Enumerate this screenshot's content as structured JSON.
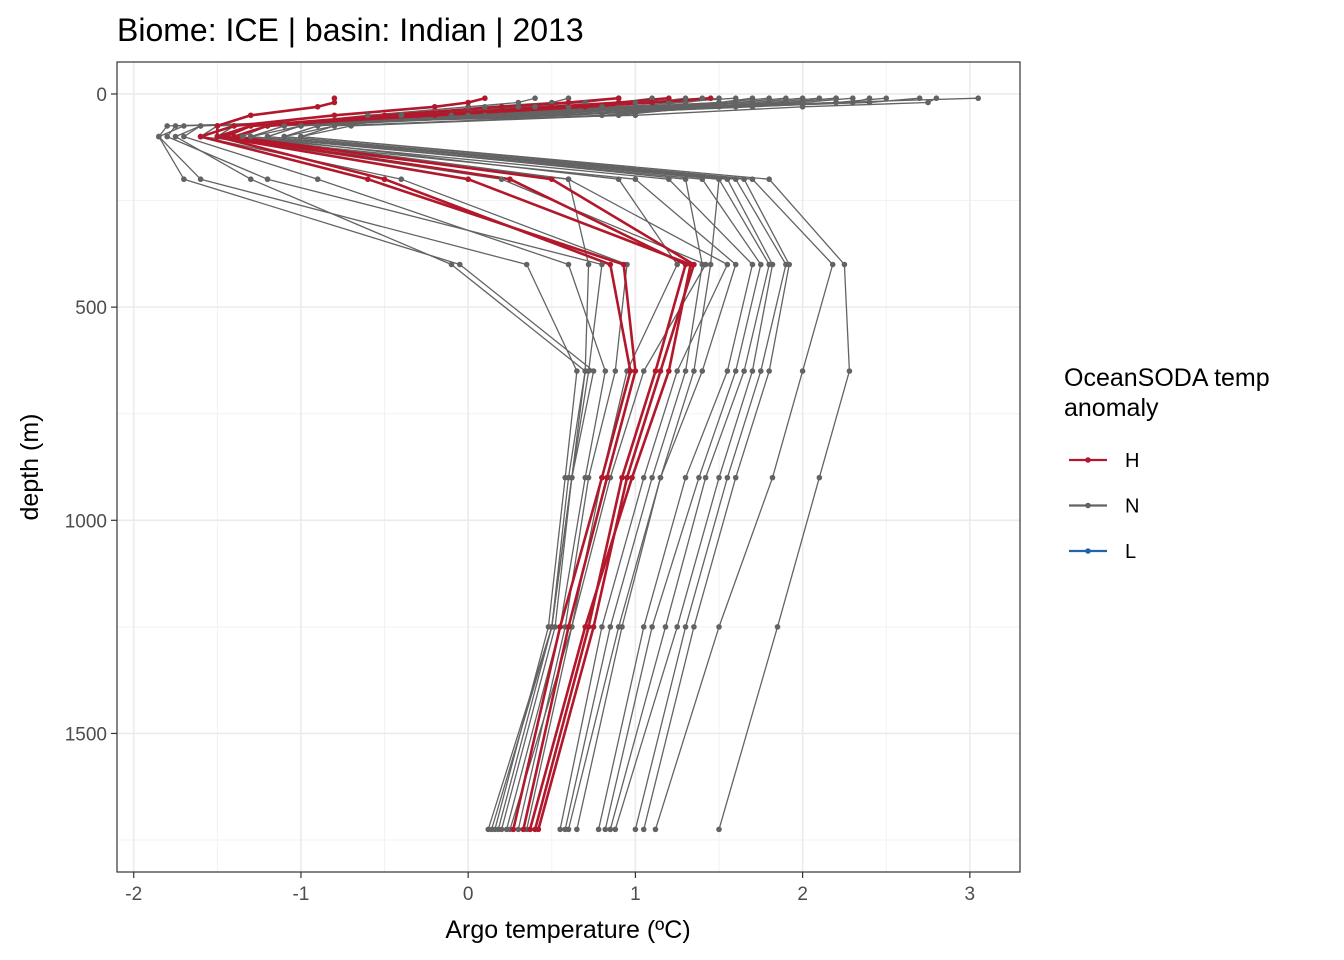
{
  "chart_data": {
    "type": "line",
    "title": "Biome: ICE | basin: Indian  |  2013",
    "xlabel": "Argo temperature (ºC)",
    "ylabel": "depth (m)",
    "xlim": [
      -2.1,
      3.3
    ],
    "ylim": [
      1825,
      -75
    ],
    "y_reversed": true,
    "x_ticks": [
      -2,
      -1,
      0,
      1,
      2,
      3
    ],
    "x_tick_labels": [
      "-2",
      "-1",
      "0",
      "1",
      "2",
      "3"
    ],
    "y_ticks": [
      0,
      500,
      1000,
      1500
    ],
    "y_tick_labels": [
      "0",
      "500",
      "1000",
      "1500"
    ],
    "grid": true,
    "legend": {
      "title_lines": [
        "OceanSODA temp",
        "anomaly"
      ],
      "placement": "right",
      "entries": [
        {
          "label": "H",
          "color": "#b2182b"
        },
        {
          "label": "N",
          "color": "#636363"
        },
        {
          "label": "L",
          "color": "#2166ac"
        }
      ]
    },
    "depth_levels": [
      10,
      20,
      30,
      50,
      75,
      100,
      200,
      400,
      650,
      900,
      1250,
      1725
    ],
    "series": [
      {
        "category": "H",
        "color": "#b2182b",
        "values": [
          -0.8,
          -0.8,
          -0.9,
          -1.3,
          -1.5,
          -1.5,
          -0.5,
          0.85,
          0.97,
          0.8,
          0.55,
          0.27
        ]
      },
      {
        "category": "H",
        "color": "#b2182b",
        "values": [
          0.1,
          0.0,
          -0.2,
          -0.8,
          -1.4,
          -1.6,
          -0.6,
          0.93,
          1.0,
          0.83,
          0.6,
          0.33
        ]
      },
      {
        "category": "H",
        "color": "#b2182b",
        "values": [
          0.9,
          0.6,
          0.2,
          -0.5,
          -1.3,
          -1.5,
          0.0,
          1.33,
          1.2,
          0.98,
          0.7,
          0.37
        ]
      },
      {
        "category": "H",
        "color": "#b2182b",
        "values": [
          1.2,
          0.9,
          0.5,
          -0.3,
          -1.2,
          -1.4,
          0.5,
          1.35,
          1.15,
          0.95,
          0.75,
          0.42
        ]
      },
      {
        "category": "H",
        "color": "#b2182b",
        "values": [
          1.45,
          1.1,
          0.7,
          -0.2,
          -1.3,
          -1.45,
          0.25,
          1.3,
          1.12,
          0.92,
          0.72,
          0.4
        ]
      },
      {
        "category": "N",
        "color": "#636363",
        "values": [
          3.05,
          2.2,
          1.5,
          0.5,
          -1.6,
          -1.75,
          -1.3,
          -0.1,
          0.7,
          0.6,
          0.5,
          0.12
        ]
      },
      {
        "category": "N",
        "color": "#636363",
        "values": [
          2.8,
          2.75,
          2.0,
          1.0,
          -1.8,
          -1.85,
          -1.7,
          -0.05,
          0.75,
          0.62,
          0.5,
          0.14
        ]
      },
      {
        "category": "N",
        "color": "#636363",
        "values": [
          2.4,
          2.3,
          1.7,
          0.5,
          -1.7,
          -1.85,
          -1.6,
          0.35,
          0.65,
          0.58,
          0.48,
          0.16
        ]
      },
      {
        "category": "N",
        "color": "#636363",
        "values": [
          2.2,
          1.9,
          1.3,
          0.3,
          -1.75,
          -1.8,
          -1.2,
          0.8,
          0.72,
          0.62,
          0.52,
          0.2
        ]
      },
      {
        "category": "N",
        "color": "#636363",
        "values": [
          1.8,
          1.5,
          1.0,
          0.0,
          -1.6,
          -1.7,
          -0.9,
          0.6,
          0.82,
          0.7,
          0.55,
          0.23
        ]
      },
      {
        "category": "N",
        "color": "#636363",
        "values": [
          1.6,
          1.2,
          0.6,
          -0.2,
          -1.5,
          -1.6,
          -0.4,
          0.95,
          0.88,
          0.72,
          0.58,
          0.3
        ]
      },
      {
        "category": "N",
        "color": "#636363",
        "values": [
          1.4,
          1.0,
          0.4,
          -0.4,
          -1.4,
          -1.5,
          0.2,
          1.42,
          1.05,
          0.85,
          0.62,
          0.35
        ]
      },
      {
        "category": "N",
        "color": "#636363",
        "values": [
          2.5,
          2.2,
          1.4,
          0.2,
          -1.5,
          -1.6,
          0.6,
          1.55,
          1.25,
          1.05,
          0.8,
          0.55
        ]
      },
      {
        "category": "N",
        "color": "#636363",
        "values": [
          2.7,
          2.4,
          1.6,
          0.6,
          -1.4,
          -1.5,
          1.0,
          1.6,
          1.4,
          1.15,
          0.9,
          0.6
        ]
      },
      {
        "category": "N",
        "color": "#636363",
        "values": [
          2.3,
          2.0,
          1.4,
          0.5,
          -1.2,
          -1.4,
          1.2,
          1.7,
          1.55,
          1.3,
          1.05,
          0.78
        ]
      },
      {
        "category": "N",
        "color": "#636363",
        "values": [
          1.9,
          1.6,
          1.1,
          0.3,
          -1.1,
          -1.3,
          1.4,
          1.75,
          1.6,
          1.38,
          1.1,
          0.82
        ]
      },
      {
        "category": "N",
        "color": "#636363",
        "values": [
          2.0,
          1.7,
          1.2,
          0.4,
          -1.0,
          -1.3,
          1.5,
          1.8,
          1.65,
          1.42,
          1.18,
          0.85
        ]
      },
      {
        "category": "N",
        "color": "#636363",
        "values": [
          1.7,
          1.5,
          1.0,
          0.2,
          -1.0,
          -1.2,
          1.55,
          1.82,
          1.7,
          1.5,
          1.25,
          0.88
        ]
      },
      {
        "category": "N",
        "color": "#636363",
        "values": [
          1.5,
          1.3,
          0.9,
          0.1,
          -0.9,
          -1.1,
          1.6,
          1.9,
          1.75,
          1.55,
          1.3,
          1.0
        ]
      },
      {
        "category": "N",
        "color": "#636363",
        "values": [
          1.3,
          1.1,
          0.8,
          0.0,
          -0.9,
          -1.1,
          1.65,
          1.92,
          1.8,
          1.6,
          1.35,
          1.05
        ]
      },
      {
        "category": "N",
        "color": "#636363",
        "values": [
          2.2,
          1.9,
          1.5,
          0.8,
          -0.8,
          -1.0,
          1.7,
          2.18,
          2.0,
          1.82,
          1.5,
          1.12
        ]
      },
      {
        "category": "N",
        "color": "#636363",
        "values": [
          2.1,
          1.8,
          1.4,
          0.9,
          -0.7,
          -1.0,
          1.8,
          2.25,
          2.28,
          2.1,
          1.85,
          1.5
        ]
      },
      {
        "category": "N",
        "color": "#636363",
        "values": [
          1.1,
          0.9,
          0.6,
          -0.1,
          -0.8,
          -1.1,
          1.5,
          1.45,
          1.35,
          1.15,
          0.92,
          0.65
        ]
      },
      {
        "category": "N",
        "color": "#636363",
        "values": [
          0.9,
          0.7,
          0.3,
          -0.2,
          -1.0,
          -1.2,
          1.3,
          1.4,
          1.3,
          1.1,
          0.85,
          0.58
        ]
      },
      {
        "category": "N",
        "color": "#636363",
        "values": [
          0.6,
          0.5,
          0.1,
          -0.4,
          -1.1,
          -1.3,
          0.9,
          1.25,
          0.95,
          0.8,
          0.62,
          0.25
        ]
      },
      {
        "category": "N",
        "color": "#636363",
        "values": [
          0.4,
          0.3,
          0.0,
          -0.6,
          -1.2,
          -1.35,
          0.6,
          0.72,
          0.7,
          0.62,
          0.5,
          0.18
        ]
      }
    ]
  }
}
